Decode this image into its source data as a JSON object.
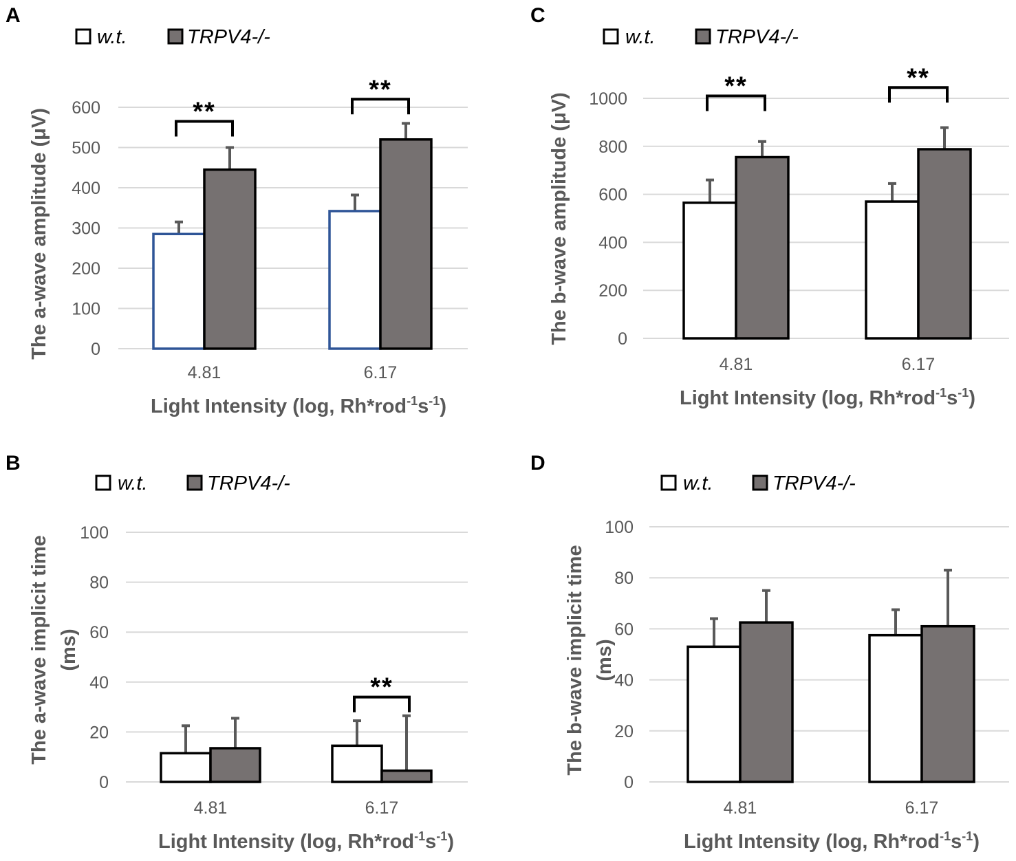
{
  "colors": {
    "grid": "#d9d9d9",
    "tick_text": "#595959",
    "wt_fill": "#ffffff",
    "ko_fill": "#767171",
    "bar_outline": "#000000",
    "wt_outline_blue": "#2f5597",
    "error_bar": "#595959"
  },
  "legend": {
    "wt": "w.t.",
    "ko": "TRPV4-/-"
  },
  "chart_data": [
    {
      "panel": "A",
      "type": "bar",
      "categories": [
        "4.81",
        "6.17"
      ],
      "series": [
        {
          "name": "w.t.",
          "values": [
            285,
            342
          ],
          "errors": [
            30,
            40
          ]
        },
        {
          "name": "TRPV4-/-",
          "values": [
            445,
            520
          ],
          "errors": [
            55,
            40
          ]
        }
      ],
      "ylabel": "The a-wave amplitude (μV)",
      "xlabel_main": "Light Intensity (log, Rh*rod",
      "xlabel_sup1": "-1",
      "xlabel_mid": "s",
      "xlabel_sup2": "-1",
      "xlabel_end": ")",
      "ylim": [
        0,
        600
      ],
      "yticks": [
        "0",
        "100",
        "200",
        "300",
        "400",
        "500",
        "600"
      ],
      "significance": [
        {
          "category": "4.81",
          "label": "**",
          "bracket_level": 565
        },
        {
          "category": "6.17",
          "label": "**",
          "bracket_level": 620
        }
      ]
    },
    {
      "panel": "B",
      "type": "bar",
      "categories": [
        "4.81",
        "6.17"
      ],
      "series": [
        {
          "name": "w.t.",
          "values": [
            11.5,
            14.5
          ],
          "errors": [
            11,
            10
          ]
        },
        {
          "name": "TRPV4-/-",
          "values": [
            13.5,
            4.5
          ],
          "errors": [
            12,
            22
          ]
        }
      ],
      "ylabel_line1": "The a-wave implicit time",
      "ylabel_line2": "(ms)",
      "xlabel_main": "Light Intensity (log, Rh*rod",
      "xlabel_sup1": "-1",
      "xlabel_mid": "s",
      "xlabel_sup2": "-1",
      "xlabel_end": ")",
      "ylim": [
        0,
        100
      ],
      "yticks": [
        "0",
        "20",
        "40",
        "60",
        "80",
        "100"
      ],
      "significance": [
        {
          "category": "6.17",
          "label": "**",
          "bracket_level": 34
        }
      ]
    },
    {
      "panel": "C",
      "type": "bar",
      "categories": [
        "4.81",
        "6.17"
      ],
      "series": [
        {
          "name": "w.t.",
          "values": [
            565,
            570
          ],
          "errors": [
            95,
            75
          ]
        },
        {
          "name": "TRPV4-/-",
          "values": [
            755,
            788
          ],
          "errors": [
            65,
            90
          ]
        }
      ],
      "ylabel": "The b-wave amplitude (μV)",
      "xlabel_main": "Light Intensity (log, Rh*rod",
      "xlabel_sup1": "-1",
      "xlabel_mid": "s",
      "xlabel_sup2": "-1",
      "xlabel_end": ")",
      "ylim": [
        0,
        1000
      ],
      "yticks": [
        "0",
        "200",
        "400",
        "600",
        "800",
        "1000"
      ],
      "significance": [
        {
          "category": "4.81",
          "label": "**",
          "bracket_level": 1010
        },
        {
          "category": "6.17",
          "label": "**",
          "bracket_level": 1045
        }
      ]
    },
    {
      "panel": "D",
      "type": "bar",
      "categories": [
        "4.81",
        "6.17"
      ],
      "series": [
        {
          "name": "w.t.",
          "values": [
            53,
            57.5
          ],
          "errors": [
            11,
            10
          ]
        },
        {
          "name": "TRPV4-/-",
          "values": [
            62.5,
            61
          ],
          "errors": [
            12.5,
            22
          ]
        }
      ],
      "ylabel_line1": "The b-wave implicit time",
      "ylabel_line2": "(ms)",
      "xlabel_main": "Light Intensity (log, Rh*rod",
      "xlabel_sup1": "-1",
      "xlabel_mid": "s",
      "xlabel_sup2": "-1",
      "xlabel_end": ")",
      "ylim": [
        0,
        100
      ],
      "yticks": [
        "0",
        "20",
        "40",
        "60",
        "80",
        "100"
      ],
      "significance": []
    }
  ]
}
